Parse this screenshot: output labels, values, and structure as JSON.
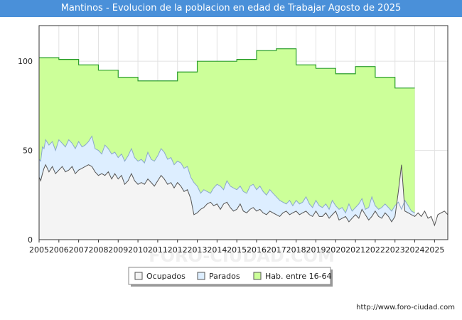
{
  "chart_data": {
    "type": "area",
    "title": "Mantinos - Evolucion de la poblacion en edad de Trabajar Agosto de 2025",
    "xlabel": "",
    "ylabel": "",
    "xlim": [
      2005.0,
      2025.67
    ],
    "ylim": [
      0,
      120
    ],
    "yticks": [
      0,
      50,
      100
    ],
    "xticks": [
      2005,
      2006,
      2007,
      2008,
      2009,
      2010,
      2011,
      2012,
      2013,
      2014,
      2015,
      2016,
      2017,
      2018,
      2019,
      2020,
      2021,
      2022,
      2023,
      2024,
      2025
    ],
    "grid": true,
    "legend_position": "bottom",
    "watermark": "FORO-CIUDAD.COM",
    "series": [
      {
        "name": "Hab. entre 16-64",
        "color": "#ccff99",
        "stroke": "#2a9d2a",
        "x": [
          2005,
          2006,
          2007,
          2008,
          2009,
          2010,
          2011,
          2012,
          2013,
          2014,
          2015,
          2016,
          2017,
          2018,
          2019,
          2020,
          2021,
          2022,
          2023
        ],
        "values": [
          102,
          101,
          98,
          95,
          91,
          89,
          89,
          94,
          100,
          100,
          101,
          106,
          107,
          98,
          96,
          93,
          97,
          91,
          85
        ]
      },
      {
        "name": "Parados",
        "color": "#ddeeff",
        "stroke": "#8aa8cc",
        "x": [
          2005.0,
          2005.08,
          2005.17,
          2005.25,
          2005.33,
          2005.5,
          2005.67,
          2005.83,
          2006.0,
          2006.17,
          2006.33,
          2006.5,
          2006.67,
          2006.83,
          2007.0,
          2007.17,
          2007.33,
          2007.5,
          2007.67,
          2007.83,
          2008.0,
          2008.17,
          2008.33,
          2008.5,
          2008.67,
          2008.83,
          2009.0,
          2009.17,
          2009.33,
          2009.5,
          2009.67,
          2009.83,
          2010.0,
          2010.17,
          2010.33,
          2010.5,
          2010.67,
          2010.83,
          2011.0,
          2011.17,
          2011.33,
          2011.5,
          2011.67,
          2011.83,
          2012.0,
          2012.17,
          2012.33,
          2012.5,
          2012.67,
          2012.83,
          2013.0,
          2013.17,
          2013.33,
          2013.5,
          2013.67,
          2013.83,
          2014.0,
          2014.17,
          2014.33,
          2014.5,
          2014.67,
          2014.83,
          2015.0,
          2015.17,
          2015.33,
          2015.5,
          2015.67,
          2015.83,
          2016.0,
          2016.17,
          2016.33,
          2016.5,
          2016.67,
          2016.83,
          2017.0,
          2017.17,
          2017.33,
          2017.5,
          2017.67,
          2017.83,
          2018.0,
          2018.17,
          2018.33,
          2018.5,
          2018.67,
          2018.83,
          2019.0,
          2019.17,
          2019.33,
          2019.5,
          2019.67,
          2019.83,
          2020.0,
          2020.17,
          2020.33,
          2020.5,
          2020.67,
          2020.83,
          2021.0,
          2021.17,
          2021.33,
          2021.5,
          2021.67,
          2021.83,
          2022.0,
          2022.17,
          2022.33,
          2022.5,
          2022.67,
          2022.83,
          2023.0,
          2023.17,
          2023.33,
          2023.5,
          2023.67,
          2023.83,
          2024.0
        ],
        "values": [
          45,
          44,
          52,
          51,
          56,
          53,
          55,
          50,
          56,
          54,
          52,
          56,
          54,
          51,
          55,
          52,
          53,
          55,
          58,
          51,
          50,
          48,
          53,
          51,
          48,
          49,
          46,
          48,
          44,
          47,
          51,
          46,
          44,
          45,
          43,
          49,
          45,
          44,
          47,
          51,
          49,
          45,
          46,
          42,
          44,
          43,
          40,
          41,
          35,
          32,
          30,
          26,
          28,
          27,
          26,
          29,
          31,
          30,
          28,
          33,
          30,
          29,
          28,
          30,
          27,
          26,
          30,
          31,
          28,
          30,
          27,
          25,
          28,
          26,
          24,
          22,
          21,
          20,
          22,
          19,
          22,
          20,
          21,
          24,
          20,
          18,
          22,
          19,
          18,
          20,
          17,
          22,
          19,
          17,
          18,
          15,
          20,
          16,
          18,
          20,
          23,
          17,
          18,
          24,
          19,
          17,
          18,
          20,
          18,
          16,
          19,
          21,
          17,
          22,
          19,
          16,
          15
        ]
      },
      {
        "name": "Ocupados",
        "color": "#f4f4f4",
        "stroke": "#555555",
        "x": [
          2005.0,
          2005.08,
          2005.17,
          2005.25,
          2005.33,
          2005.5,
          2005.67,
          2005.83,
          2006.0,
          2006.17,
          2006.33,
          2006.5,
          2006.67,
          2006.83,
          2007.0,
          2007.17,
          2007.33,
          2007.5,
          2007.67,
          2007.83,
          2008.0,
          2008.17,
          2008.33,
          2008.5,
          2008.67,
          2008.83,
          2009.0,
          2009.17,
          2009.33,
          2009.5,
          2009.67,
          2009.83,
          2010.0,
          2010.17,
          2010.33,
          2010.5,
          2010.67,
          2010.83,
          2011.0,
          2011.17,
          2011.33,
          2011.5,
          2011.67,
          2011.83,
          2012.0,
          2012.17,
          2012.33,
          2012.5,
          2012.67,
          2012.83,
          2013.0,
          2013.17,
          2013.33,
          2013.5,
          2013.67,
          2013.83,
          2014.0,
          2014.17,
          2014.33,
          2014.5,
          2014.67,
          2014.83,
          2015.0,
          2015.17,
          2015.33,
          2015.5,
          2015.67,
          2015.83,
          2016.0,
          2016.17,
          2016.33,
          2016.5,
          2016.67,
          2016.83,
          2017.0,
          2017.17,
          2017.33,
          2017.5,
          2017.67,
          2017.83,
          2018.0,
          2018.17,
          2018.33,
          2018.5,
          2018.67,
          2018.83,
          2019.0,
          2019.17,
          2019.33,
          2019.5,
          2019.67,
          2019.83,
          2020.0,
          2020.17,
          2020.33,
          2020.5,
          2020.67,
          2020.83,
          2021.0,
          2021.17,
          2021.33,
          2021.5,
          2021.67,
          2021.83,
          2022.0,
          2022.17,
          2022.33,
          2022.5,
          2022.67,
          2022.83,
          2023.0,
          2023.17,
          2023.33,
          2023.5,
          2023.67,
          2023.83,
          2024.0,
          2024.17,
          2024.33,
          2024.5,
          2024.67,
          2024.83,
          2025.0,
          2025.17,
          2025.33,
          2025.5,
          2025.67
        ],
        "values": [
          35,
          33,
          37,
          40,
          42,
          38,
          41,
          37,
          39,
          41,
          38,
          39,
          41,
          37,
          39,
          40,
          41,
          42,
          41,
          38,
          36,
          37,
          36,
          38,
          34,
          37,
          34,
          36,
          31,
          33,
          37,
          33,
          31,
          32,
          31,
          34,
          32,
          30,
          33,
          36,
          34,
          31,
          32,
          29,
          32,
          30,
          27,
          28,
          23,
          14,
          15,
          17,
          18,
          20,
          21,
          19,
          20,
          17,
          20,
          21,
          18,
          16,
          17,
          20,
          16,
          15,
          17,
          18,
          16,
          17,
          15,
          14,
          16,
          15,
          14,
          13,
          15,
          16,
          14,
          15,
          16,
          14,
          15,
          16,
          14,
          13,
          16,
          13,
          13,
          15,
          12,
          14,
          16,
          11,
          12,
          13,
          10,
          12,
          14,
          12,
          17,
          14,
          11,
          13,
          16,
          13,
          12,
          15,
          13,
          10,
          13,
          27,
          42,
          16,
          15,
          14,
          13,
          15,
          13,
          16,
          12,
          13,
          8,
          14,
          15,
          16,
          14
        ]
      }
    ]
  },
  "footer": "http://www.foro-ciudad.com"
}
